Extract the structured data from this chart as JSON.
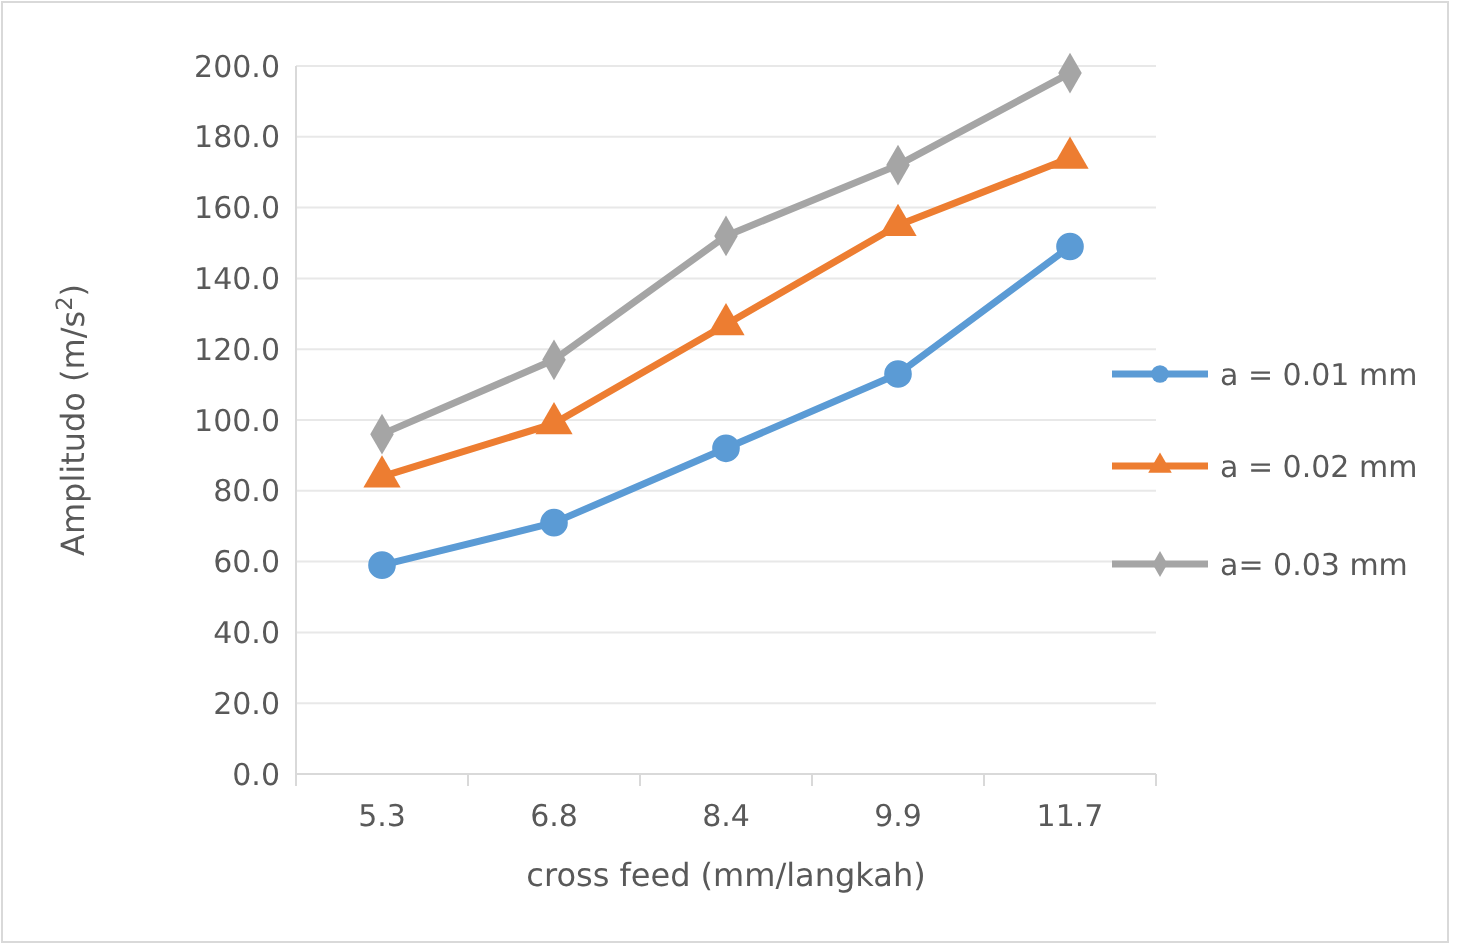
{
  "chart_data": {
    "type": "line",
    "xlabel": "cross feed (mm/langkah)",
    "ylabel": "Amplitudo (m/s$^{2}$)",
    "categories": [
      "5.3",
      "6.8",
      "8.4",
      "9.9",
      "11.7"
    ],
    "ylim": [
      0,
      200
    ],
    "yticks": [
      {
        "value": 0,
        "label": "0.0"
      },
      {
        "value": 20,
        "label": "20.0"
      },
      {
        "value": 40,
        "label": "40.0"
      },
      {
        "value": 60,
        "label": "60.0"
      },
      {
        "value": 80,
        "label": "80.0"
      },
      {
        "value": 100,
        "label": "100.0"
      },
      {
        "value": 120,
        "label": "120.0"
      },
      {
        "value": 140,
        "label": "140.0"
      },
      {
        "value": 160,
        "label": "160.0"
      },
      {
        "value": 180,
        "label": "180.0"
      },
      {
        "value": 200,
        "label": "200.0"
      }
    ],
    "grid": "y",
    "legend": "right",
    "series": [
      {
        "name": "a = 0.01 mm",
        "color": "#5b9bd5",
        "marker": "circle",
        "values": [
          59,
          71,
          92,
          113,
          149
        ]
      },
      {
        "name": "a = 0.02 mm",
        "color": "#ed7d31",
        "marker": "triangle",
        "values": [
          84,
          99,
          127,
          155,
          174
        ]
      },
      {
        "name": "a= 0.03 mm",
        "color": "#a5a5a5",
        "marker": "diamond",
        "values": [
          96,
          117,
          152,
          172,
          198
        ]
      }
    ]
  }
}
